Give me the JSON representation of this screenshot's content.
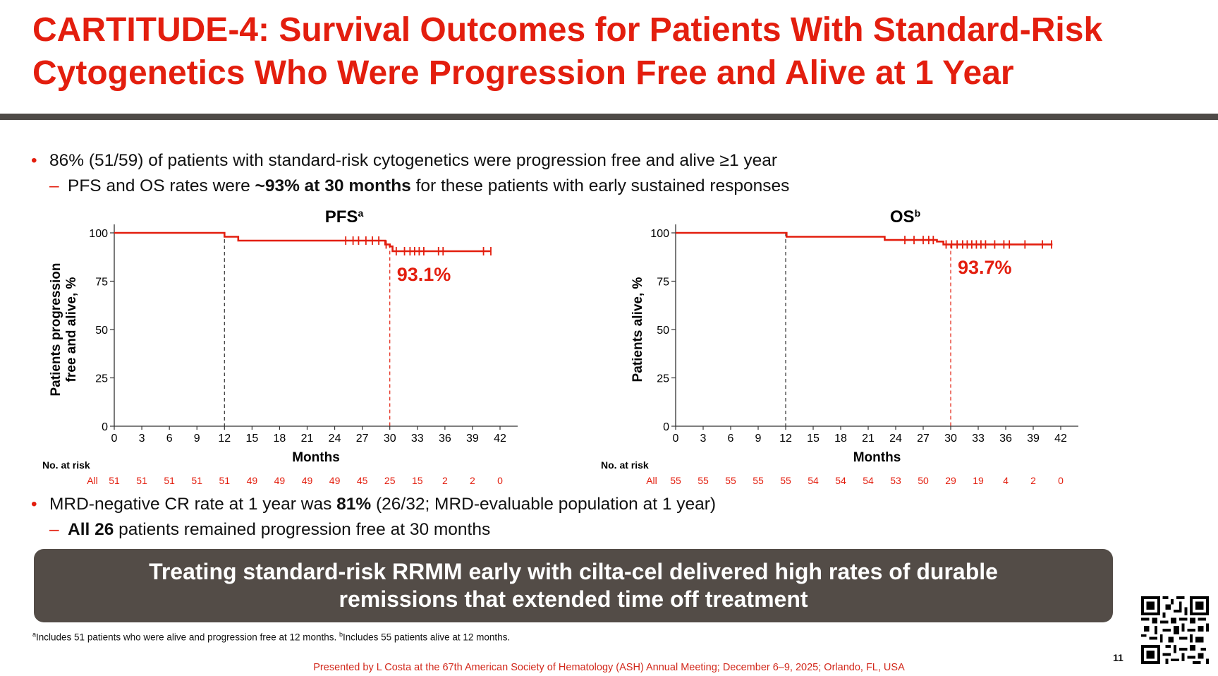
{
  "header": {
    "title_line1": "CARTITUDE-4: Survival Outcomes for Patients With Standard-Risk",
    "title_line2": "Cytogenetics Who Were Progression Free and Alive at 1 Year"
  },
  "bullets_top": {
    "b1": "86% (51/59) of patients with standard-risk cytogenetics were progression free and alive ≥1 year",
    "b2_pre": "PFS and OS rates were ",
    "b2_bold": "~93% at 30 months",
    "b2_post": " for these patients with early sustained responses"
  },
  "bullets_bottom": {
    "b1_pre": "MRD-negative CR rate at 1 year was ",
    "b1_bold": "81%",
    "b1_post": " (26/32; MRD-evaluable population at 1 year)",
    "b2_bold": "All 26",
    "b2_post": " patients remained progression free at 30 months"
  },
  "markers": {
    "bullet": "•",
    "dash": "–"
  },
  "banner": {
    "line1": "Treating standard-risk RRMM early with cilta-cel delivered high rates of durable",
    "line2": "remissions that extended time off treatment"
  },
  "footnote": {
    "a_mark": "a",
    "a_text": "Includes 51 patients who were alive and progression free at 12 months. ",
    "b_mark": "b",
    "b_text": "Includes 55 patients alive at 12 months."
  },
  "presented_by": "Presented by L Costa at the 67th American Society of Hematology (ASH) Annual Meeting; December 6–9, 2025; Orlando, FL, USA",
  "page_number": "11",
  "colors": {
    "accent": "#e31e0e",
    "banner": "#534c47",
    "rule": "#4e4a47"
  },
  "chart_data": [
    {
      "type": "line",
      "title": "PFS",
      "title_sup": "a",
      "xlabel": "Months",
      "ylabel": [
        "Patients progression",
        "free and alive, %"
      ],
      "xlim": [
        0,
        42
      ],
      "ylim": [
        0,
        100
      ],
      "xticks": [
        0,
        3,
        6,
        9,
        12,
        15,
        18,
        21,
        24,
        27,
        30,
        33,
        36,
        39,
        42
      ],
      "yticks": [
        0,
        25,
        50,
        75,
        100
      ],
      "reference_lines_x": [
        12,
        30
      ],
      "annotation": "93.1%",
      "series": [
        {
          "step_points": [
            [
              0,
              100
            ],
            [
              12,
              100
            ],
            [
              12,
              98
            ],
            [
              13.5,
              98
            ],
            [
              13.5,
              96
            ],
            [
              29.5,
              96
            ],
            [
              29.5,
              94
            ],
            [
              30,
              94
            ],
            [
              30,
              93
            ],
            [
              30.3,
              93
            ],
            [
              30.3,
              90.5
            ],
            [
              41,
              90.5
            ]
          ],
          "censor_x": [
            25.2,
            26,
            26.6,
            27.4,
            28.1,
            28.8,
            29.6,
            30.7,
            31.6,
            32.2,
            32.7,
            33.2,
            33.7,
            35.3,
            35.8,
            40.2,
            41
          ]
        }
      ],
      "at_risk_label": "No. at risk",
      "at_risk": {
        "name": "All",
        "values": [
          51,
          51,
          51,
          51,
          51,
          49,
          49,
          49,
          49,
          45,
          25,
          15,
          2,
          2,
          0
        ]
      }
    },
    {
      "type": "line",
      "title": "OS",
      "title_sup": "b",
      "xlabel": "Months",
      "ylabel": [
        "Patients alive, %"
      ],
      "xlim": [
        0,
        42
      ],
      "ylim": [
        0,
        100
      ],
      "xticks": [
        0,
        3,
        6,
        9,
        12,
        15,
        18,
        21,
        24,
        27,
        30,
        33,
        36,
        39,
        42
      ],
      "yticks": [
        0,
        25,
        50,
        75,
        100
      ],
      "reference_lines_x": [
        12,
        30
      ],
      "annotation": "93.7%",
      "series": [
        {
          "step_points": [
            [
              0,
              100
            ],
            [
              12.1,
              100
            ],
            [
              12.1,
              98
            ],
            [
              22.8,
              98
            ],
            [
              22.8,
              96.3
            ],
            [
              28.5,
              96.3
            ],
            [
              28.5,
              95.5
            ],
            [
              29.2,
              95.5
            ],
            [
              29.2,
              94
            ],
            [
              41.1,
              94
            ]
          ],
          "censor_x": [
            25,
            26,
            27,
            27.6,
            28.1,
            29.5,
            30.1,
            30.7,
            31.3,
            31.8,
            32.3,
            32.8,
            33.3,
            33.8,
            34.8,
            35.8,
            36.4,
            38.1,
            40,
            41
          ]
        }
      ],
      "at_risk_label": "No. at risk",
      "at_risk": {
        "name": "All",
        "values": [
          55,
          55,
          55,
          55,
          55,
          54,
          54,
          54,
          53,
          50,
          29,
          19,
          4,
          2,
          0
        ]
      }
    }
  ]
}
